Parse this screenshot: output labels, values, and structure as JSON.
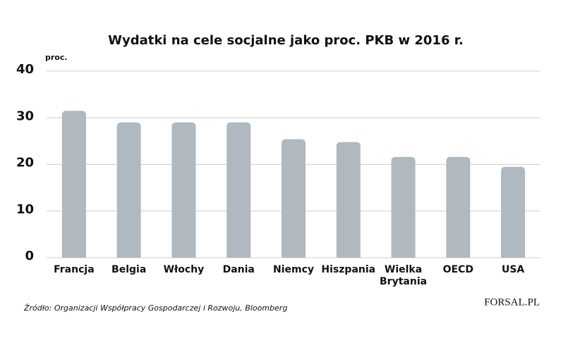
{
  "chart_data": {
    "type": "bar",
    "title": "Wydatki na cele socjalne jako proc. PKB w 2016 r.",
    "y_label": "proc.",
    "categories": [
      "Francja",
      "Belgia",
      "Włochy",
      "Dania",
      "Niemcy",
      "Hiszpania",
      "Wielka Brytania",
      "OECD",
      "USA"
    ],
    "values": [
      31.5,
      29.0,
      29.0,
      29.0,
      25.4,
      24.8,
      21.6,
      21.6,
      19.5
    ],
    "color": "#b0b9c0",
    "ylim": [
      0,
      40
    ],
    "yticks": [
      0,
      10,
      20,
      30,
      40
    ],
    "grid": true,
    "source": "Źródło:  Organizacji Współpracy Gospodarczej i Rozwoju, Bloomberg",
    "logo": "FORSAL.PL"
  }
}
